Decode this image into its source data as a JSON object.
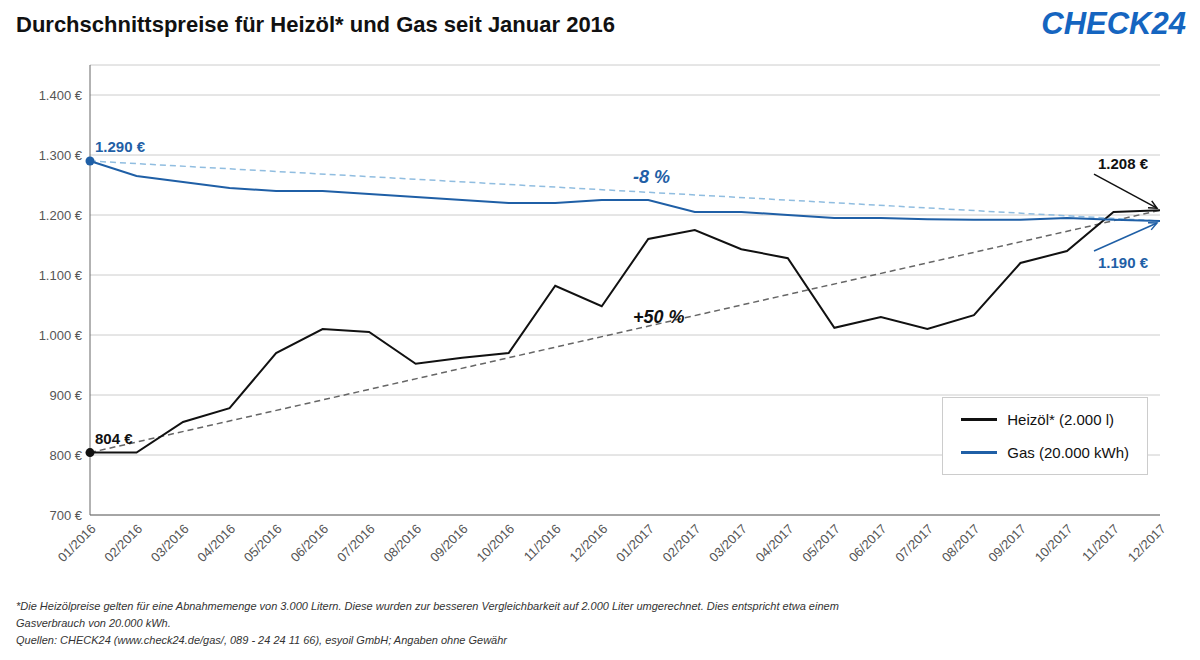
{
  "chart_data": {
    "type": "line",
    "title": "Durchschnittspreise für Heizöl* und Gas seit Januar 2016",
    "logo_text": "CHECK24",
    "logo_color": "#1565c0",
    "categories": [
      "01/2016",
      "02/2016",
      "03/2016",
      "04/2016",
      "05/2016",
      "06/2016",
      "07/2016",
      "08/2016",
      "09/2016",
      "10/2016",
      "11/2016",
      "12/2016",
      "01/2017",
      "02/2017",
      "03/2017",
      "04/2017",
      "05/2017",
      "06/2017",
      "07/2017",
      "08/2017",
      "09/2017",
      "10/2017",
      "11/2017",
      "12/2017"
    ],
    "series": [
      {
        "name": "Heizöl* (2.000 l)",
        "color": "#111111",
        "values": [
          804,
          804,
          855,
          878,
          970,
          1010,
          1005,
          952,
          962,
          970,
          1082,
          1048,
          1160,
          1175,
          1143,
          1128,
          1012,
          1030,
          1010,
          1033,
          1120,
          1140,
          1205,
          1208
        ]
      },
      {
        "name": "Gas (20.000 kWh)",
        "color": "#1f5fa6",
        "values": [
          1290,
          1265,
          1255,
          1245,
          1240,
          1240,
          1235,
          1230,
          1225,
          1220,
          1220,
          1225,
          1225,
          1205,
          1205,
          1200,
          1195,
          1195,
          1193,
          1192,
          1192,
          1195,
          1192,
          1190
        ]
      }
    ],
    "trend_lines": [
      {
        "color": "#666666",
        "line_style": "dashed",
        "values": [
          804,
          null,
          null,
          null,
          null,
          null,
          null,
          null,
          null,
          null,
          null,
          null,
          null,
          null,
          null,
          null,
          null,
          null,
          null,
          null,
          null,
          null,
          null,
          1208
        ],
        "label": "+50 %",
        "label_color": "#111111"
      },
      {
        "color": "#90bde0",
        "line_style": "dashed",
        "values": [
          1290,
          null,
          null,
          null,
          null,
          null,
          null,
          null,
          null,
          null,
          null,
          null,
          null,
          null,
          null,
          null,
          null,
          null,
          null,
          null,
          null,
          null,
          null,
          1190
        ],
        "label": "-8 %",
        "label_color": "#1f5fa6"
      }
    ],
    "annotations": [
      {
        "text": "804 €",
        "x": "01/2016",
        "y": 804,
        "color": "#111111"
      },
      {
        "text": "1.290 €",
        "x": "01/2016",
        "y": 1290,
        "color": "#1f5fa6"
      },
      {
        "text": "1.208 €",
        "x": "12/2017",
        "y": 1208,
        "color": "#111111"
      },
      {
        "text": "1.190 €",
        "x": "12/2017",
        "y": 1190,
        "color": "#1f5fa6"
      }
    ],
    "ylim": [
      700,
      1450
    ],
    "yticks": [
      {
        "value": 700,
        "label": "700 €"
      },
      {
        "value": 800,
        "label": "800 €"
      },
      {
        "value": 900,
        "label": "900 €"
      },
      {
        "value": 1000,
        "label": "1.000 €"
      },
      {
        "value": 1100,
        "label": "1.100 €"
      },
      {
        "value": 1200,
        "label": "1.200 €"
      },
      {
        "value": 1300,
        "label": "1.300 €"
      },
      {
        "value": 1400,
        "label": "1.400 €"
      }
    ],
    "grid": true,
    "legend": "lower right",
    "footnotes": [
      "*Die Heizölpreise gelten für eine Abnahmemenge von 3.000 Litern. Diese wurden zur besseren Vergleichbarkeit auf 2.000 Liter umgerechnet. Dies entspricht etwa einem",
      "Gasverbrauch von 20.000 kWh.",
      "Quellen: CHECK24 (www.check24.de/gas/, 089 - 24 24 11 66), esyoil GmbH; Angaben ohne Gewähr"
    ]
  }
}
